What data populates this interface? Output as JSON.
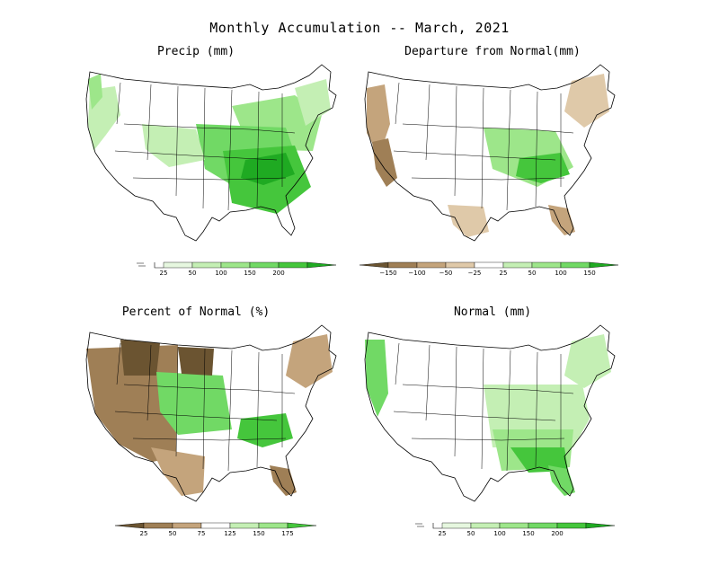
{
  "title": "Monthly Accumulation -- March, 2021",
  "colors": {
    "green_1": "#e6f7df",
    "green_2": "#c4efb4",
    "green_3": "#9de68a",
    "green_4": "#71d965",
    "green_5": "#45c63c",
    "green_6": "#1faa22",
    "brown_1": "#dfc9a9",
    "brown_2": "#c4a47c",
    "brown_3": "#9f7f56",
    "brown_4": "#6b5431",
    "white": "#ffffff",
    "outline": "#000000"
  },
  "panels": [
    {
      "id": "precip",
      "title": "Precip (mm)",
      "legend": {
        "ticks": [
          "25",
          "50",
          "100",
          "150",
          "200"
        ],
        "bins": [
          "white",
          "green_1",
          "green_2",
          "green_3",
          "green_4",
          "green_5",
          "green_6"
        ],
        "left_open_symbol": true
      }
    },
    {
      "id": "departure",
      "title": "Departure from Normal(mm)",
      "legend": {
        "ticks": [
          "−150",
          "−100",
          "−50",
          "−25",
          "25",
          "50",
          "100",
          "150"
        ],
        "bins": [
          "brown_4",
          "brown_3",
          "brown_2",
          "brown_1",
          "white",
          "green_2",
          "green_3",
          "green_4",
          "green_6"
        ],
        "left_open_symbol": false
      }
    },
    {
      "id": "percent",
      "title": "Percent of Normal (%)",
      "legend": {
        "ticks": [
          "25",
          "50",
          "75",
          "125",
          "150",
          "175"
        ],
        "bins": [
          "brown_4",
          "brown_3",
          "brown_2",
          "white",
          "green_2",
          "green_3",
          "green_5"
        ],
        "left_open_symbol": false
      }
    },
    {
      "id": "normal",
      "title": "Normal (mm)",
      "legend": {
        "ticks": [
          "25",
          "50",
          "100",
          "150",
          "200"
        ],
        "bins": [
          "white",
          "green_1",
          "green_2",
          "green_3",
          "green_4",
          "green_5",
          "green_6"
        ],
        "left_open_symbol": true
      }
    }
  ]
}
